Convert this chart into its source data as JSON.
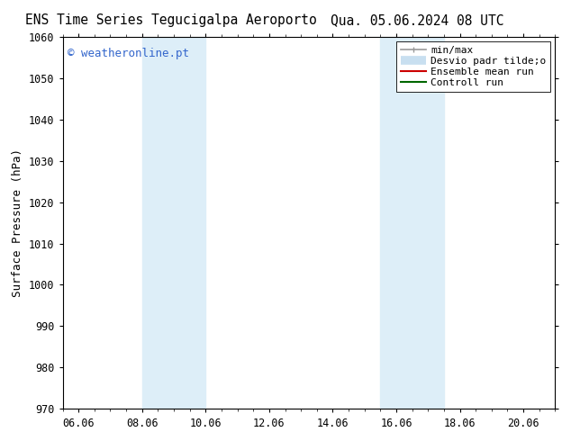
{
  "title_left": "ENS Time Series Tegucigalpa Aeroporto",
  "title_right": "Qua. 05.06.2024 08 UTC",
  "ylabel": "Surface Pressure (hPa)",
  "ylim": [
    970,
    1060
  ],
  "yticks": [
    970,
    980,
    990,
    1000,
    1010,
    1020,
    1030,
    1040,
    1050,
    1060
  ],
  "xtick_labels": [
    "06.06",
    "08.06",
    "10.06",
    "12.06",
    "14.06",
    "16.06",
    "18.06",
    "20.06"
  ],
  "xtick_positions": [
    0,
    2,
    4,
    6,
    8,
    10,
    12,
    14
  ],
  "xlim": [
    -0.5,
    15.0
  ],
  "shaded_regions": [
    {
      "x_start": 2.0,
      "x_end": 4.0,
      "color": "#ddeef8"
    },
    {
      "x_start": 9.5,
      "x_end": 11.5,
      "color": "#ddeef8"
    }
  ],
  "watermark_text": "© weatheronline.pt",
  "watermark_color": "#3366cc",
  "legend_items": [
    {
      "label": "min/max",
      "color": "#999999",
      "lw": 1.2
    },
    {
      "label": "Desvio padr tilde;o",
      "color": "#c8dff0",
      "lw": 7
    },
    {
      "label": "Ensemble mean run",
      "color": "#cc0000",
      "lw": 1.5
    },
    {
      "label": "Controll run",
      "color": "#006600",
      "lw": 1.5
    }
  ],
  "background_color": "#ffffff",
  "plot_bg_color": "#ffffff",
  "title_fontsize": 10.5,
  "tick_fontsize": 8.5,
  "ylabel_fontsize": 9,
  "watermark_fontsize": 9,
  "legend_fontsize": 8
}
